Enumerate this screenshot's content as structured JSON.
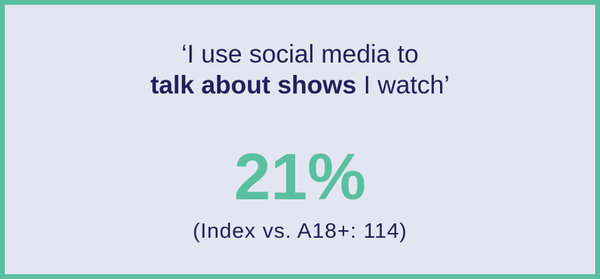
{
  "card": {
    "quote_line1": "‘I use social media to",
    "quote_bold": "talk about shows",
    "quote_rest": " I watch’",
    "percentage": "21%",
    "index_text": "(Index vs. A18+: 114)"
  },
  "colors": {
    "border": "#5bbfa2",
    "background": "#e3e6f0",
    "text": "#22205a",
    "accent": "#5bbfa2"
  }
}
